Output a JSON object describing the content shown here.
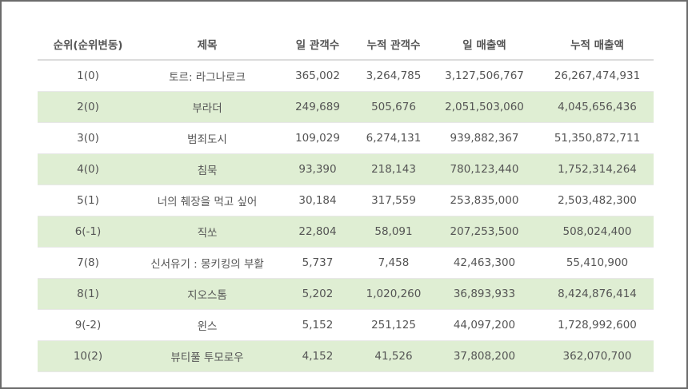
{
  "table": {
    "headers": [
      "순위(순위변동)",
      "제목",
      "일 관객수",
      "누적 관객수",
      "일 매출액",
      "누적 매출액"
    ],
    "rows": [
      [
        "1(0)",
        "토르: 라그나로크",
        "365,002",
        "3,264,785",
        "3,127,506,767",
        "26,267,474,931"
      ],
      [
        "2(0)",
        "부라더",
        "249,689",
        "505,676",
        "2,051,503,060",
        "4,045,656,436"
      ],
      [
        "3(0)",
        "범죄도시",
        "109,029",
        "6,274,131",
        "939,882,367",
        "51,350,872,711"
      ],
      [
        "4(0)",
        "침묵",
        "93,390",
        "218,143",
        "780,123,440",
        "1,752,314,264"
      ],
      [
        "5(1)",
        "너의 췌장을 먹고 싶어",
        "30,184",
        "317,559",
        "253,835,000",
        "2,503,482,300"
      ],
      [
        "6(-1)",
        "직쏘",
        "22,804",
        "58,091",
        "207,253,500",
        "508,024,400"
      ],
      [
        "7(8)",
        "신서유기 : 몽키킹의 부활",
        "5,737",
        "7,458",
        "42,463,300",
        "55,410,900"
      ],
      [
        "8(1)",
        "지오스톰",
        "5,202",
        "1,020,260",
        "36,893,933",
        "8,424,876,414"
      ],
      [
        "9(-2)",
        "윈스",
        "5,152",
        "251,125",
        "44,097,200",
        "1,728,992,600"
      ],
      [
        "10(2)",
        "뷰티풀 투모로우",
        "4,152",
        "41,526",
        "37,808,200",
        "362,070,700"
      ]
    ]
  },
  "colors": {
    "even_row": "#dfeed3",
    "border": "#6b6b6b",
    "text": "#555555"
  }
}
